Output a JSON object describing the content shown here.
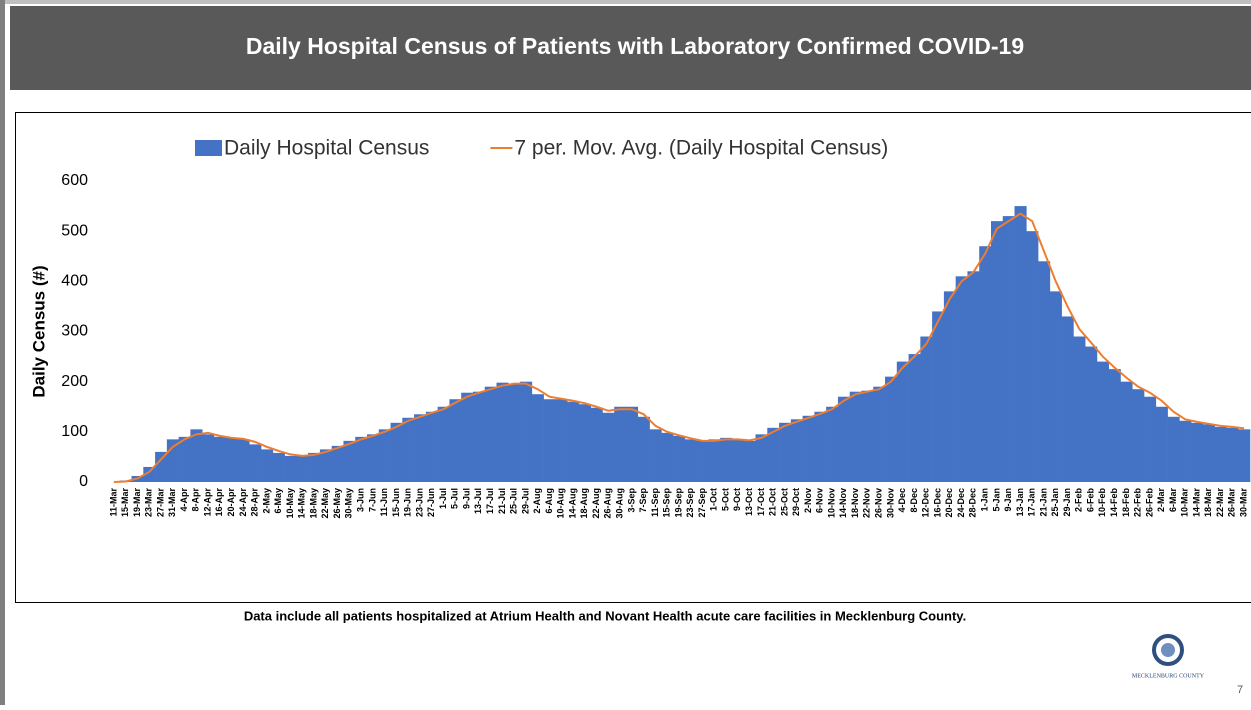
{
  "slide": {
    "title": "Daily Hospital Census of Patients with Laboratory Confirmed COVID-19",
    "footnote": "Data include all patients hospitalized at Atrium Health and Novant Health acute care facilities in Mecklenburg County.",
    "logo_text": "MECKLENBURG COUNTY",
    "page_number": "7"
  },
  "chart_data": {
    "type": "bar",
    "ylabel": "Daily Census (#)",
    "ylim": [
      0,
      600
    ],
    "yticks": [
      0,
      100,
      200,
      300,
      400,
      500,
      600
    ],
    "grid": false,
    "legend": "top",
    "categories": [
      "11-Mar",
      "15-Mar",
      "19-Mar",
      "23-Mar",
      "27-Mar",
      "31-Mar",
      "4-Apr",
      "8-Apr",
      "12-Apr",
      "16-Apr",
      "20-Apr",
      "24-Apr",
      "28-Apr",
      "2-May",
      "6-May",
      "10-May",
      "14-May",
      "18-May",
      "22-May",
      "26-May",
      "30-May",
      "3-Jun",
      "7-Jun",
      "11-Jun",
      "15-Jun",
      "19-Jun",
      "23-Jun",
      "27-Jun",
      "1-Jul",
      "5-Jul",
      "9-Jul",
      "13-Jul",
      "17-Jul",
      "21-Jul",
      "25-Jul",
      "29-Jul",
      "2-Aug",
      "6-Aug",
      "10-Aug",
      "14-Aug",
      "18-Aug",
      "22-Aug",
      "26-Aug",
      "30-Aug",
      "3-Sep",
      "7-Sep",
      "11-Sep",
      "15-Sep",
      "19-Sep",
      "23-Sep",
      "27-Sep",
      "1-Oct",
      "5-Oct",
      "9-Oct",
      "13-Oct",
      "17-Oct",
      "21-Oct",
      "25-Oct",
      "29-Oct",
      "2-Nov",
      "6-Nov",
      "10-Nov",
      "14-Nov",
      "18-Nov",
      "22-Nov",
      "26-Nov",
      "30-Nov",
      "4-Dec",
      "8-Dec",
      "12-Dec",
      "16-Dec",
      "20-Dec",
      "24-Dec",
      "28-Dec",
      "1-Jan",
      "5-Jan",
      "9-Jan",
      "13-Jan",
      "17-Jan",
      "21-Jan",
      "25-Jan",
      "29-Jan",
      "2-Feb",
      "6-Feb",
      "10-Feb",
      "14-Feb",
      "18-Feb",
      "22-Feb",
      "26-Feb",
      "2-Mar",
      "6-Mar",
      "10-Mar",
      "14-Mar",
      "18-Mar",
      "22-Mar",
      "26-Mar",
      "30-Mar"
    ],
    "series": [
      {
        "name": "Daily Hospital Census",
        "type": "bar",
        "color": "#4472c4",
        "values": [
          0,
          3,
          12,
          30,
          60,
          85,
          90,
          105,
          95,
          90,
          88,
          85,
          75,
          65,
          58,
          52,
          52,
          58,
          65,
          72,
          82,
          90,
          95,
          105,
          118,
          128,
          135,
          140,
          150,
          165,
          178,
          180,
          190,
          198,
          195,
          200,
          175,
          165,
          165,
          160,
          155,
          148,
          138,
          150,
          150,
          130,
          105,
          98,
          92,
          85,
          82,
          85,
          88,
          84,
          82,
          95,
          108,
          118,
          125,
          132,
          140,
          150,
          170,
          180,
          182,
          190,
          210,
          240,
          255,
          290,
          340,
          380,
          410,
          420,
          470,
          520,
          530,
          550,
          500,
          440,
          380,
          330,
          290,
          270,
          240,
          225,
          200,
          185,
          170,
          150,
          130,
          122,
          118,
          115,
          110,
          108,
          105
        ]
      },
      {
        "name": "7 per. Mov. Avg. (Daily Hospital Census)",
        "type": "line",
        "color": "#ed7d31",
        "values": [
          0,
          1,
          7,
          20,
          45,
          70,
          85,
          95,
          98,
          92,
          88,
          86,
          80,
          70,
          62,
          55,
          52,
          54,
          60,
          68,
          76,
          85,
          92,
          100,
          110,
          122,
          130,
          138,
          145,
          158,
          170,
          178,
          185,
          192,
          196,
          196,
          185,
          170,
          166,
          162,
          157,
          150,
          142,
          145,
          145,
          135,
          112,
          100,
          93,
          87,
          82,
          82,
          85,
          85,
          83,
          88,
          100,
          112,
          120,
          128,
          136,
          145,
          162,
          175,
          180,
          185,
          200,
          228,
          250,
          275,
          320,
          365,
          400,
          418,
          455,
          505,
          520,
          535,
          520,
          460,
          400,
          350,
          305,
          278,
          250,
          228,
          208,
          190,
          178,
          162,
          140,
          125,
          120,
          116,
          112,
          110,
          107
        ]
      }
    ]
  }
}
